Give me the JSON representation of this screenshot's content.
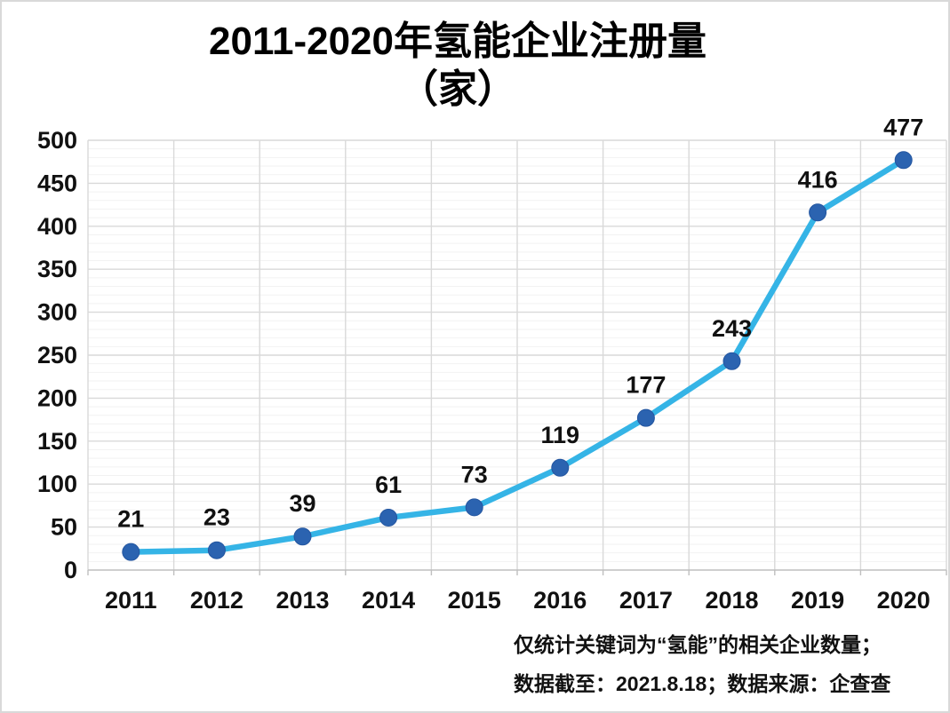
{
  "title": {
    "line1": "2011-2020年氢能企业注册量",
    "line2": "（家）"
  },
  "chart_data": {
    "type": "line",
    "title": "2011-2020年氢能企业注册量（家）",
    "categories": [
      "2011",
      "2012",
      "2013",
      "2014",
      "2015",
      "2016",
      "2017",
      "2018",
      "2019",
      "2020"
    ],
    "values": [
      21,
      23,
      39,
      61,
      73,
      119,
      177,
      243,
      416,
      477
    ],
    "xlabel": "",
    "ylabel": "",
    "ylim": [
      0,
      500
    ],
    "y_major_step": 50,
    "y_minor_step": 10,
    "grid": "major-and-minor-horizontal, vertical-category-boundaries",
    "legend_position": "none",
    "data_labels": "above-points",
    "colors": {
      "line": "#35B4E6",
      "marker": "#2B63B0",
      "marker_edge": "#2456A0",
      "grid_major": "#D9D9D9",
      "grid_minor": "#F2F2F2",
      "axis_line": "#BFBFBF",
      "label_text": "#111111"
    }
  },
  "footnote": {
    "line1": "仅统计关键词为“氢能”的相关企业数量；",
    "line2": "数据截至：2021.8.18；数据来源：企查查"
  }
}
